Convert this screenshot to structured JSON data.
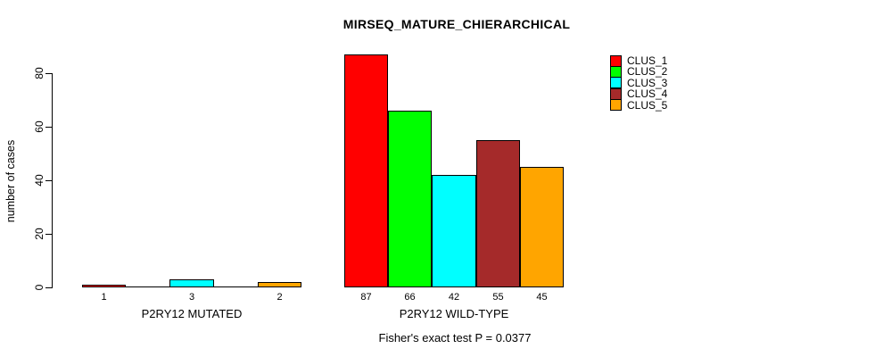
{
  "title": "MIRSEQ_MATURE_CHIERARCHICAL",
  "footer": "Fisher's exact test P = 0.0377",
  "chart_data": {
    "type": "bar",
    "title": "MIRSEQ_MATURE_CHIERARCHICAL",
    "xlabel": "",
    "ylabel": "number of cases",
    "ylim": [
      0,
      87
    ],
    "yticks": [
      0,
      20,
      40,
      60,
      80
    ],
    "grid": false,
    "legend_position": "top-right",
    "bar_labels_note": "value printed under each non-zero bar",
    "categories": [
      "P2RY12 MUTATED",
      "P2RY12 WILD-TYPE"
    ],
    "series": [
      {
        "name": "CLUS_1",
        "color": "#FF0000",
        "values": [
          1,
          87
        ]
      },
      {
        "name": "CLUS_2",
        "color": "#00FF00",
        "values": [
          0,
          66
        ]
      },
      {
        "name": "CLUS_3",
        "color": "#00FFFF",
        "values": [
          3,
          42
        ]
      },
      {
        "name": "CLUS_4",
        "color": "#A52A2A",
        "values": [
          0,
          55
        ]
      },
      {
        "name": "CLUS_5",
        "color": "#FFA500",
        "values": [
          2,
          45
        ]
      }
    ],
    "annotation": "Fisher's exact test P = 0.0377"
  }
}
